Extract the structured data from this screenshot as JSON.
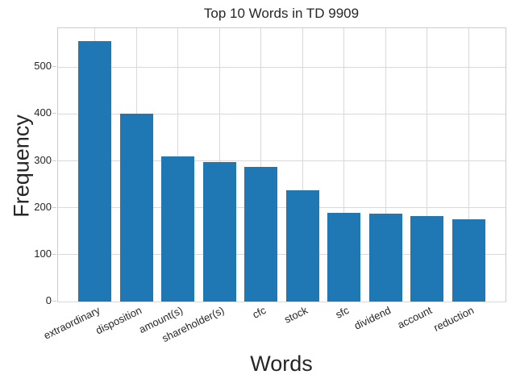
{
  "chart_data": {
    "type": "bar",
    "title": "Top 10 Words in TD 9909",
    "xlabel": "Words",
    "ylabel": "Frequency",
    "categories": [
      "extraordinary",
      "disposition",
      "amount(s)",
      "shareholder(s)",
      "cfc",
      "stock",
      "sfc",
      "dividend",
      "account",
      "reduction"
    ],
    "values": [
      555,
      400,
      310,
      298,
      287,
      237,
      190,
      188,
      182,
      176
    ],
    "yticks": [
      0,
      100,
      200,
      300,
      400,
      500
    ],
    "ylim": [
      0,
      583
    ],
    "grid": true,
    "legend_position": "none",
    "x_tick_rotation_deg": 26,
    "bar_color": "#1f77b4",
    "grid_color": "#d9d9d9",
    "spine_color": "#cccccc",
    "text_color": "#262626",
    "background_color": "#ffffff"
  }
}
